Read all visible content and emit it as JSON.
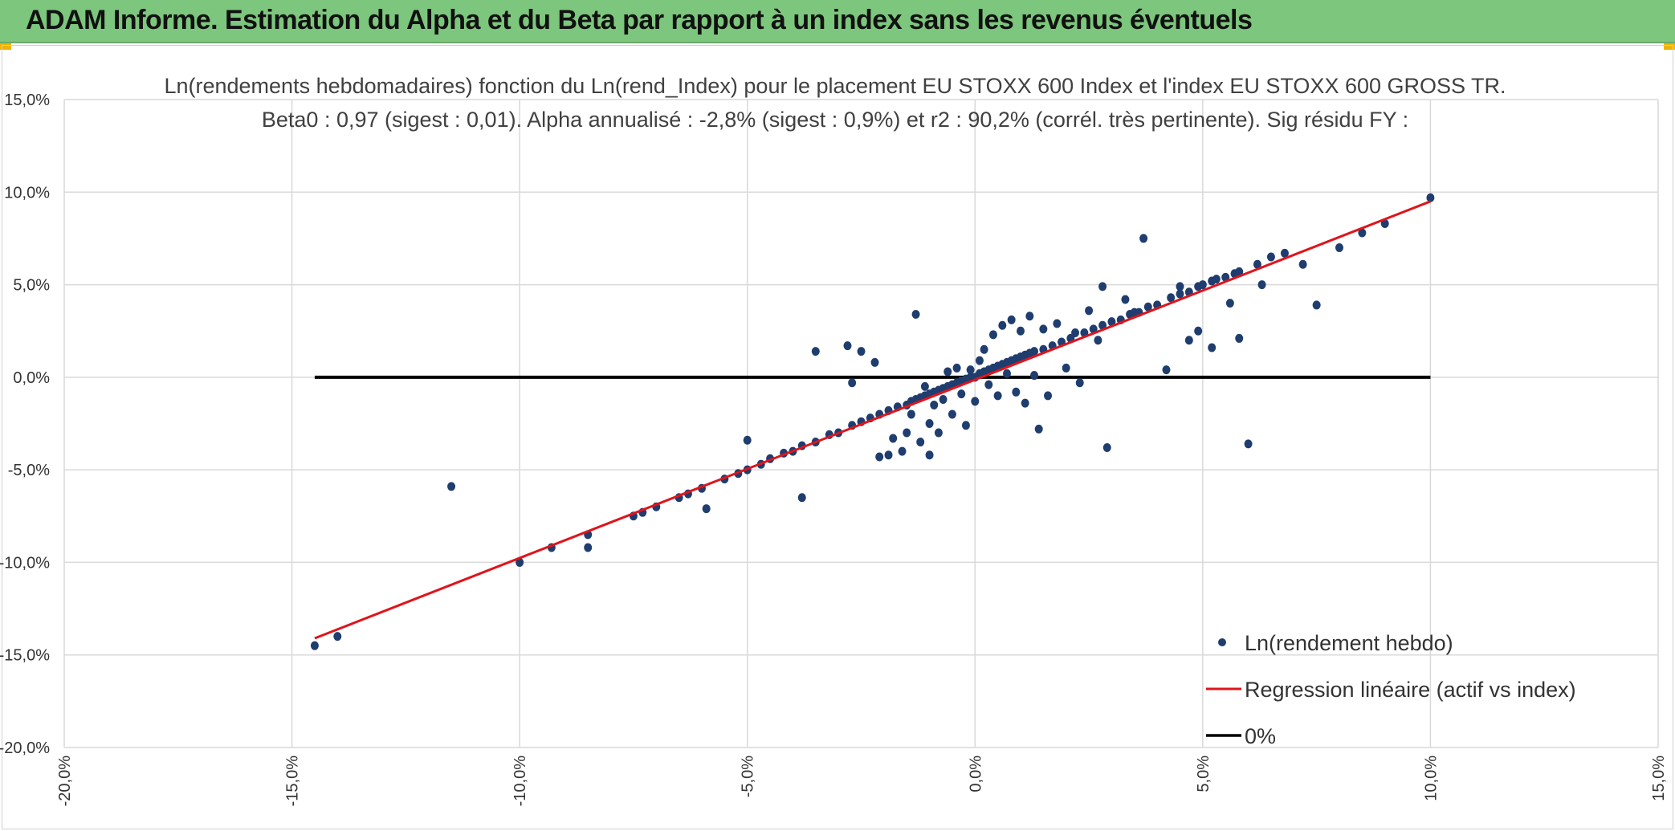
{
  "header": {
    "title": "ADAM Informe. Estimation du Alpha et du Beta par rapport à un index sans les revenus éventuels"
  },
  "colors": {
    "banner": "#7dc67d",
    "points": "#1f3d6e",
    "regression": "#e0141b",
    "zero_line": "#000000",
    "grid": "#d9d9d9"
  },
  "chart_data": {
    "type": "scatter",
    "title_line1": "Ln(rendements hebdomadaires) fonction du Ln(rend_Index) pour le placement EU STOXX 600 Index et l'index EU STOXX 600 GROSS TR.",
    "title_line2": "Beta0 : 0,97 (sigest : 0,01). Alpha annualisé : -2,8% (sigest : 0,9%) et r2 : 90,2% (corrél. très pertinente). Sig résidu FY :",
    "xlim": [
      -20,
      15
    ],
    "ylim": [
      -20,
      15
    ],
    "x_ticks": [
      "-20,0%",
      "-15,0%",
      "-10,0%",
      "-5,0%",
      "0,0%",
      "5,0%",
      "10,0%",
      "15,0%"
    ],
    "y_ticks": [
      "15,0%",
      "10,0%",
      "5,0%",
      "0,0%",
      "-5,0%",
      "-10,0%",
      "-15,0%",
      "-20,0%"
    ],
    "grid": true,
    "legend_position": "bottom-right",
    "series": [
      {
        "name": "Ln(rendement hebdo)",
        "kind": "scatter",
        "points": [
          [
            -14.5,
            -14.5
          ],
          [
            -14.0,
            -14.0
          ],
          [
            -11.5,
            -5.9
          ],
          [
            -10.0,
            -10.0
          ],
          [
            -9.3,
            -9.2
          ],
          [
            -8.5,
            -9.2
          ],
          [
            -8.5,
            -8.5
          ],
          [
            -7.5,
            -7.5
          ],
          [
            -7.3,
            -7.3
          ],
          [
            -7.0,
            -7.0
          ],
          [
            -6.5,
            -6.5
          ],
          [
            -6.3,
            -6.3
          ],
          [
            -6.0,
            -6.0
          ],
          [
            -5.9,
            -7.1
          ],
          [
            -5.5,
            -5.5
          ],
          [
            -5.2,
            -5.2
          ],
          [
            -5.0,
            -5.0
          ],
          [
            -5.0,
            -3.4
          ],
          [
            -4.7,
            -4.7
          ],
          [
            -4.5,
            -4.4
          ],
          [
            -4.2,
            -4.1
          ],
          [
            -4.0,
            -4.0
          ],
          [
            -3.8,
            -6.5
          ],
          [
            -3.8,
            -3.7
          ],
          [
            -3.5,
            -3.5
          ],
          [
            -3.5,
            1.4
          ],
          [
            -3.2,
            -3.1
          ],
          [
            -3.0,
            -3.0
          ],
          [
            -2.8,
            1.7
          ],
          [
            -2.7,
            -2.6
          ],
          [
            -2.7,
            -0.3
          ],
          [
            -2.5,
            -2.4
          ],
          [
            -2.5,
            1.4
          ],
          [
            -2.3,
            -2.2
          ],
          [
            -2.2,
            0.8
          ],
          [
            -2.1,
            -2.0
          ],
          [
            -2.1,
            -4.3
          ],
          [
            -1.9,
            -4.2
          ],
          [
            -1.9,
            -1.8
          ],
          [
            -1.8,
            -3.3
          ],
          [
            -1.7,
            -1.6
          ],
          [
            -1.6,
            -4.0
          ],
          [
            -1.5,
            -1.5
          ],
          [
            -1.5,
            -3.0
          ],
          [
            -1.4,
            -1.3
          ],
          [
            -1.4,
            -2.0
          ],
          [
            -1.3,
            -1.2
          ],
          [
            -1.3,
            3.4
          ],
          [
            -1.2,
            -1.1
          ],
          [
            -1.2,
            -3.5
          ],
          [
            -1.1,
            -1.0
          ],
          [
            -1.1,
            -0.5
          ],
          [
            -1.0,
            -0.9
          ],
          [
            -1.0,
            -4.2
          ],
          [
            -1.0,
            -2.5
          ],
          [
            -0.9,
            -0.8
          ],
          [
            -0.9,
            -1.5
          ],
          [
            -0.8,
            -0.7
          ],
          [
            -0.8,
            -3.0
          ],
          [
            -0.7,
            -0.6
          ],
          [
            -0.7,
            -1.2
          ],
          [
            -0.6,
            -0.5
          ],
          [
            -0.6,
            0.3
          ],
          [
            -0.5,
            -0.4
          ],
          [
            -0.5,
            -2.0
          ],
          [
            -0.4,
            -0.3
          ],
          [
            -0.4,
            0.5
          ],
          [
            -0.3,
            -0.2
          ],
          [
            -0.3,
            -0.9
          ],
          [
            -0.2,
            -0.1
          ],
          [
            -0.2,
            -2.6
          ],
          [
            -0.1,
            0.0
          ],
          [
            -0.1,
            0.4
          ],
          [
            0.0,
            0.0
          ],
          [
            0.0,
            -1.3
          ],
          [
            0.1,
            0.2
          ],
          [
            0.1,
            0.9
          ],
          [
            0.2,
            0.3
          ],
          [
            0.2,
            1.5
          ],
          [
            0.3,
            0.4
          ],
          [
            0.3,
            -0.4
          ],
          [
            0.4,
            0.5
          ],
          [
            0.4,
            2.3
          ],
          [
            0.5,
            0.6
          ],
          [
            0.5,
            -1.0
          ],
          [
            0.6,
            0.7
          ],
          [
            0.6,
            2.8
          ],
          [
            0.7,
            0.8
          ],
          [
            0.7,
            0.2
          ],
          [
            0.8,
            0.9
          ],
          [
            0.8,
            3.1
          ],
          [
            0.9,
            1.0
          ],
          [
            0.9,
            -0.8
          ],
          [
            1.0,
            1.1
          ],
          [
            1.0,
            2.5
          ],
          [
            1.1,
            -1.4
          ],
          [
            1.1,
            1.2
          ],
          [
            1.2,
            1.3
          ],
          [
            1.2,
            3.3
          ],
          [
            1.3,
            0.1
          ],
          [
            1.3,
            1.4
          ],
          [
            1.4,
            -2.8
          ],
          [
            1.5,
            1.5
          ],
          [
            1.5,
            2.6
          ],
          [
            1.6,
            -1.0
          ],
          [
            1.7,
            1.7
          ],
          [
            1.8,
            2.9
          ],
          [
            1.9,
            1.9
          ],
          [
            2.0,
            0.5
          ],
          [
            2.1,
            2.1
          ],
          [
            2.2,
            2.4
          ],
          [
            2.3,
            -0.3
          ],
          [
            2.4,
            2.4
          ],
          [
            2.5,
            3.6
          ],
          [
            2.6,
            2.6
          ],
          [
            2.7,
            2.0
          ],
          [
            2.8,
            2.8
          ],
          [
            2.8,
            4.9
          ],
          [
            2.9,
            -3.8
          ],
          [
            3.0,
            3.0
          ],
          [
            3.2,
            3.1
          ],
          [
            3.3,
            4.2
          ],
          [
            3.4,
            3.4
          ],
          [
            3.5,
            3.5
          ],
          [
            3.6,
            3.5
          ],
          [
            3.7,
            7.5
          ],
          [
            3.8,
            3.8
          ],
          [
            4.0,
            3.9
          ],
          [
            4.2,
            0.4
          ],
          [
            4.3,
            4.3
          ],
          [
            4.5,
            4.5
          ],
          [
            4.5,
            4.9
          ],
          [
            4.7,
            2.0
          ],
          [
            4.7,
            4.6
          ],
          [
            4.9,
            4.9
          ],
          [
            4.9,
            2.5
          ],
          [
            5.0,
            5.0
          ],
          [
            5.2,
            5.2
          ],
          [
            5.2,
            1.6
          ],
          [
            5.3,
            5.3
          ],
          [
            5.5,
            5.4
          ],
          [
            5.6,
            4.0
          ],
          [
            5.7,
            5.6
          ],
          [
            5.8,
            2.1
          ],
          [
            5.8,
            5.7
          ],
          [
            6.0,
            -3.6
          ],
          [
            6.2,
            6.1
          ],
          [
            6.3,
            5.0
          ],
          [
            6.5,
            6.5
          ],
          [
            6.8,
            6.7
          ],
          [
            7.2,
            6.1
          ],
          [
            7.5,
            3.9
          ],
          [
            8.0,
            7.0
          ],
          [
            8.5,
            7.8
          ],
          [
            9.0,
            8.3
          ],
          [
            10.0,
            9.7
          ]
        ]
      },
      {
        "name": "Regression linéaire (actif vs index)",
        "kind": "line",
        "x": [
          -14.5,
          10.0
        ],
        "y": [
          -14.1,
          9.5
        ]
      },
      {
        "name": "0%",
        "kind": "line",
        "x": [
          -14.5,
          10.0
        ],
        "y": [
          0.0,
          0.0
        ]
      }
    ]
  }
}
